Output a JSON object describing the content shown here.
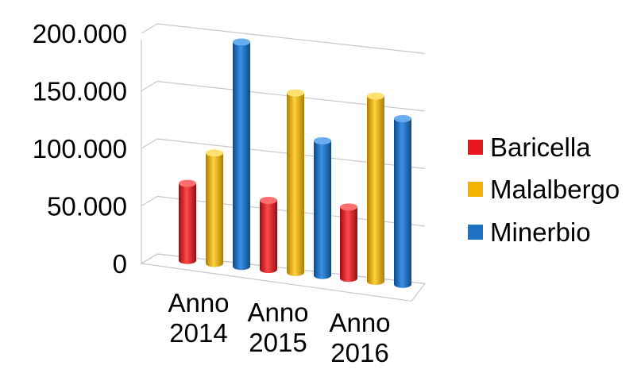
{
  "chart_data": {
    "type": "bar",
    "categories": [
      [
        "Anno",
        "2014"
      ],
      [
        "Anno",
        "2015"
      ],
      [
        "Anno",
        "2016"
      ]
    ],
    "series": [
      {
        "name": "Baricella",
        "color": "#e8171b",
        "values": [
          67000,
          60000,
          62000
        ]
      },
      {
        "name": "Malalbergo",
        "color": "#f5b400",
        "values": [
          96000,
          156000,
          161000
        ]
      },
      {
        "name": "Minerbio",
        "color": "#1d72c6",
        "values": [
          195000,
          117000,
          144000
        ]
      }
    ],
    "yticks": [
      "0",
      "50.000",
      "100.000",
      "150.000",
      "200.000"
    ],
    "ylim": [
      0,
      200000
    ],
    "grid": true,
    "legend_position": "right",
    "three_d": true
  }
}
